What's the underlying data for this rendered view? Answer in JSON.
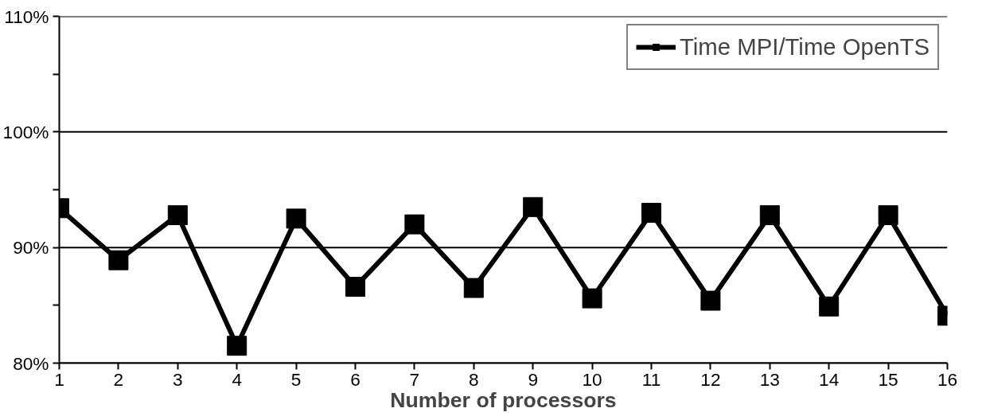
{
  "chart_data": {
    "type": "line",
    "xlabel": "Number of processors",
    "x": [
      1,
      2,
      3,
      4,
      5,
      6,
      7,
      8,
      9,
      10,
      11,
      12,
      13,
      14,
      15,
      16
    ],
    "series": [
      {
        "name": "Time MPI/Time OpenTS",
        "color": "#000000",
        "values": [
          93.4,
          88.9,
          92.8,
          81.5,
          92.5,
          86.6,
          92.0,
          86.5,
          93.5,
          85.6,
          93.0,
          85.4,
          92.8,
          84.9,
          92.8,
          84.1
        ]
      }
    ],
    "xlim": [
      1,
      16
    ],
    "xticks": [
      1,
      2,
      3,
      4,
      5,
      6,
      7,
      8,
      9,
      10,
      11,
      12,
      13,
      14,
      15,
      16
    ],
    "ylim": [
      80,
      110
    ],
    "yticks": [
      {
        "value": 80,
        "label": "80%"
      },
      {
        "value": 85,
        "label": null
      },
      {
        "value": 90,
        "label": "90%"
      },
      {
        "value": 95,
        "label": null
      },
      {
        "value": 100,
        "label": "100%"
      },
      {
        "value": 105,
        "label": null
      },
      {
        "value": 110,
        "label": "110%"
      }
    ],
    "grid": "y",
    "legend": "top right",
    "marker": "square",
    "line_style": "solid"
  }
}
